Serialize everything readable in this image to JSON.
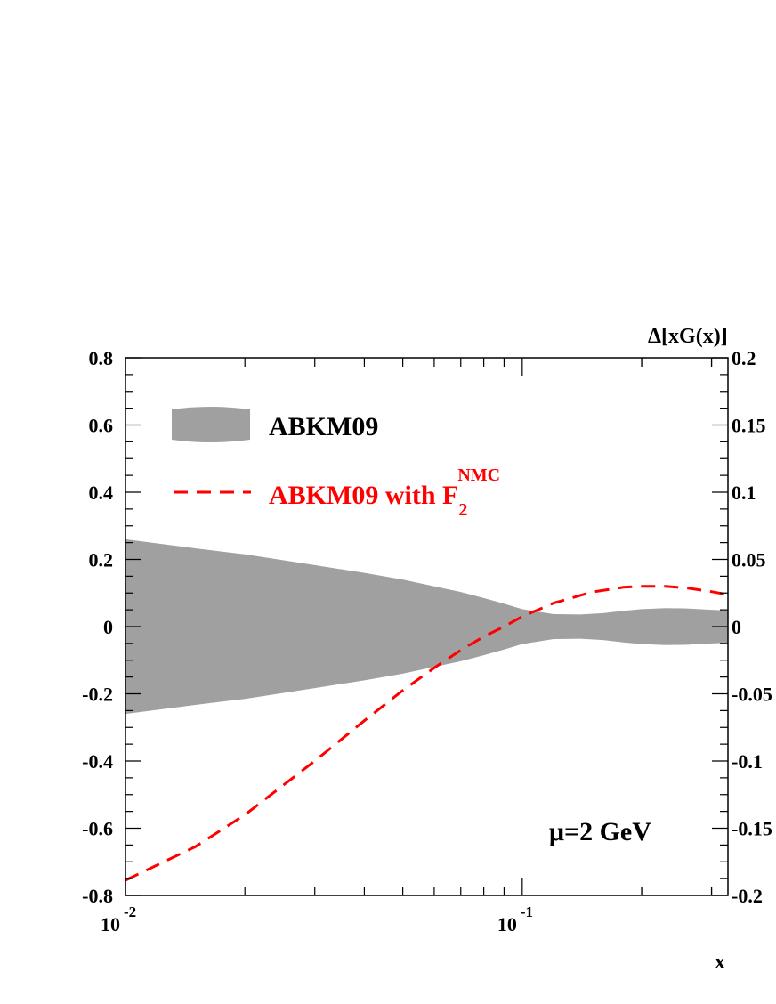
{
  "chart_data": {
    "type": "area",
    "xlabel": "x",
    "ylabel_right": "Δ[xG(x)]",
    "x_scale": "log",
    "xlim": [
      0.01,
      0.33
    ],
    "ylim_left": [
      -0.8,
      0.8
    ],
    "ylim_right": [
      -0.2,
      0.2
    ],
    "x_ticks": [
      {
        "value": 0.01,
        "base": "10",
        "exp": "-2"
      },
      {
        "value": 0.1,
        "base": "10",
        "exp": "-1"
      }
    ],
    "y_ticks_left": [
      "0.8",
      "0.6",
      "0.4",
      "0.2",
      "0",
      "-0.2",
      "-0.4",
      "-0.6",
      "-0.8"
    ],
    "y_ticks_right": [
      "0.2",
      "0.15",
      "0.1",
      "0.05",
      "0",
      "-0.05",
      "-0.1",
      "-0.15",
      "-0.2"
    ],
    "legend_position": "top-left",
    "colors": {
      "band": "#a0a0a0",
      "line": "#ff0000"
    },
    "series": [
      {
        "name": "ABKM09",
        "kind": "band",
        "x": [
          0.01,
          0.015,
          0.02,
          0.03,
          0.04,
          0.05,
          0.06,
          0.07,
          0.08,
          0.09,
          0.1,
          0.12,
          0.14,
          0.16,
          0.18,
          0.2,
          0.23,
          0.26,
          0.3,
          0.33
        ],
        "upper": [
          0.26,
          0.233,
          0.215,
          0.183,
          0.16,
          0.14,
          0.12,
          0.103,
          0.085,
          0.068,
          0.052,
          0.037,
          0.036,
          0.04,
          0.047,
          0.052,
          0.055,
          0.054,
          0.05,
          0.048
        ],
        "lower": [
          -0.26,
          -0.233,
          -0.215,
          -0.183,
          -0.16,
          -0.14,
          -0.12,
          -0.103,
          -0.085,
          -0.068,
          -0.052,
          -0.037,
          -0.036,
          -0.04,
          -0.047,
          -0.052,
          -0.055,
          -0.054,
          -0.05,
          -0.048
        ]
      },
      {
        "name": "ABKM09 with F",
        "name_sub": "2",
        "name_sup": "NMC",
        "kind": "dashed-line",
        "x": [
          0.01,
          0.015,
          0.02,
          0.03,
          0.04,
          0.05,
          0.06,
          0.07,
          0.08,
          0.09,
          0.1,
          0.12,
          0.15,
          0.18,
          0.2,
          0.23,
          0.26,
          0.3,
          0.33
        ],
        "y": [
          -0.755,
          -0.655,
          -0.56,
          -0.4,
          -0.28,
          -0.19,
          -0.123,
          -0.07,
          -0.03,
          0.0,
          0.03,
          0.07,
          0.103,
          0.117,
          0.12,
          0.12,
          0.115,
          0.104,
          0.095
        ]
      }
    ],
    "annotation": "μ=2 GeV"
  }
}
